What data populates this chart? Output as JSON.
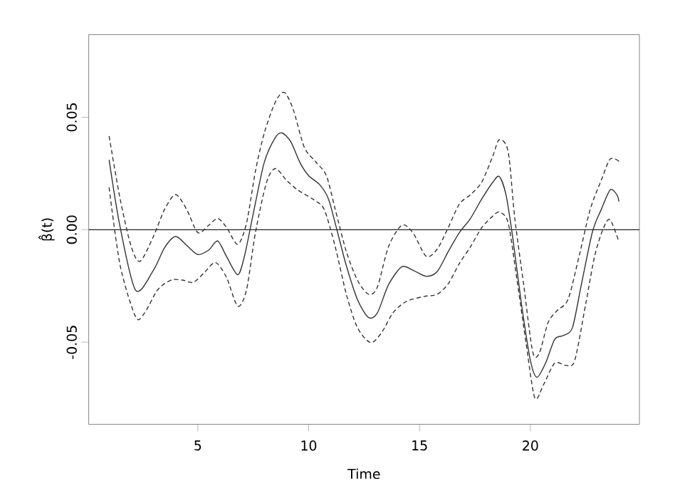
{
  "chart_data": {
    "type": "line",
    "xlabel": "Time",
    "ylabel": "β̂(t)",
    "xlim": [
      0.08,
      24.92
    ],
    "ylim": [
      -0.0865,
      0.0867
    ],
    "xticks": [
      5,
      10,
      15,
      20
    ],
    "yticks": [
      -0.05,
      {
        "value": 0,
        "label": "0.00"
      },
      0.05
    ],
    "ref_lines": [
      {
        "axis": "y",
        "value": 0,
        "color": "#222222"
      }
    ],
    "series": [
      {
        "color": "#333333",
        "line_style": "solid",
        "x": [
          1,
          1.5,
          2.2,
          3,
          3.5,
          4,
          4.5,
          5,
          5.5,
          5.9,
          6.3,
          6.8,
          7.1,
          7.5,
          8,
          8.5,
          8.8,
          9.2,
          9.6,
          10,
          10.5,
          10.9,
          11.3,
          11.7,
          12.2,
          12.7,
          13.1,
          13.6,
          14.2,
          14.7,
          15.3,
          15.8,
          16.3,
          16.8,
          17.3,
          17.8,
          18.3,
          18.6,
          18.9,
          19.2,
          19.6,
          20,
          20.3,
          20.7,
          21.1,
          21.5,
          21.9,
          22.3,
          22.8,
          23.2,
          23.6,
          23.9,
          24
        ],
        "values": [
          0.031,
          0.001,
          -0.027,
          -0.018,
          -0.008,
          -0.003,
          -0.007,
          -0.011,
          -0.009,
          -0.005,
          -0.012,
          -0.02,
          -0.012,
          0.007,
          0.03,
          0.041,
          0.043,
          0.039,
          0.03,
          0.024,
          0.02,
          0.0135,
          -0.001,
          -0.016,
          -0.031,
          -0.039,
          -0.037,
          -0.0245,
          -0.0165,
          -0.018,
          -0.0207,
          -0.0186,
          -0.0097,
          -0.0013,
          0.005,
          0.0135,
          0.021,
          0.0236,
          0.0156,
          -0.003,
          -0.033,
          -0.058,
          -0.0656,
          -0.059,
          -0.0487,
          -0.047,
          -0.0435,
          -0.0245,
          -0.001,
          0.009,
          0.0177,
          0.0156,
          0.0125
        ]
      },
      {
        "color": "#333333",
        "line_style": "dashed",
        "x": [
          1,
          1.5,
          2,
          2.4,
          3,
          3.5,
          4,
          4.5,
          5,
          5.5,
          5.9,
          6.3,
          6.8,
          7.2,
          7.6,
          8,
          8.5,
          8.9,
          9.3,
          9.8,
          10.3,
          10.8,
          11.2,
          11.7,
          12.2,
          12.7,
          13.1,
          13.6,
          14.2,
          14.7,
          15.3,
          15.8,
          16.3,
          16.8,
          17.3,
          17.8,
          18.3,
          18.6,
          19,
          19.3,
          19.7,
          20.1,
          20.4,
          20.8,
          21.2,
          21.7,
          22.2,
          22.7,
          23.2,
          23.6,
          24
        ],
        "values": [
          0.0416,
          0.0135,
          -0.0076,
          -0.014,
          -0.003,
          0.009,
          0.0156,
          0.009,
          -0.0013,
          0.002,
          0.005,
          0.001,
          -0.0065,
          0.003,
          0.026,
          0.043,
          0.0568,
          0.061,
          0.0536,
          0.0367,
          0.0304,
          0.024,
          0.009,
          -0.0097,
          -0.0224,
          -0.0287,
          -0.0255,
          -0.0076,
          0.002,
          -0.0013,
          -0.0118,
          -0.0086,
          0.001,
          0.0114,
          0.0156,
          0.021,
          0.0325,
          0.04,
          0.0346,
          0.005,
          -0.0245,
          -0.054,
          -0.055,
          -0.0413,
          -0.036,
          -0.031,
          -0.0118,
          0.009,
          0.022,
          0.0314,
          0.0304
        ]
      },
      {
        "color": "#333333",
        "line_style": "dashed",
        "x": [
          1,
          1.5,
          2.2,
          2.6,
          3.2,
          3.8,
          4.3,
          4.8,
          5.3,
          5.8,
          6.3,
          6.8,
          7.2,
          7.6,
          8.1,
          8.5,
          9,
          9.5,
          10.2,
          10.7,
          11.2,
          11.7,
          12.2,
          12.8,
          13.3,
          13.8,
          14.4,
          15.2,
          15.8,
          16.3,
          16.8,
          17.3,
          17.8,
          18.3,
          18.6,
          19,
          19.4,
          19.8,
          20.2,
          20.6,
          21.1,
          21.6,
          22,
          22.5,
          22.9,
          23.3,
          23.6,
          24
        ],
        "values": [
          0.0188,
          -0.016,
          -0.0388,
          -0.037,
          -0.0266,
          -0.0224,
          -0.0224,
          -0.0234,
          -0.019,
          -0.0146,
          -0.0213,
          -0.034,
          -0.0266,
          -0.0013,
          0.021,
          0.0272,
          0.022,
          0.0177,
          0.0135,
          0.009,
          -0.0076,
          -0.0287,
          -0.0435,
          -0.0502,
          -0.0456,
          -0.037,
          -0.0319,
          -0.0297,
          -0.0287,
          -0.024,
          -0.015,
          -0.0076,
          0.0008,
          0.006,
          0.0078,
          0.003,
          -0.0224,
          -0.0498,
          -0.0747,
          -0.0688,
          -0.0593,
          -0.0603,
          -0.0582,
          -0.0329,
          -0.0118,
          0.0008,
          0.0044,
          -0.0055
        ]
      }
    ]
  }
}
